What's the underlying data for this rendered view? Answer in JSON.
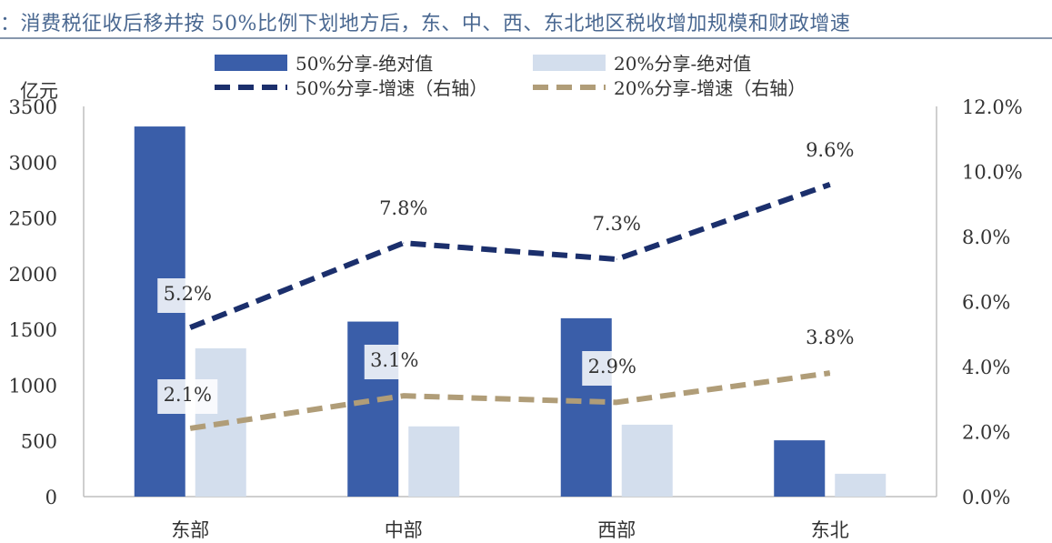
{
  "title": "：消费税征收后移并按 50%比例下划地方后，东、中、西、东北地区税收增加规模和财政增速",
  "chart_data": {
    "type": "bar",
    "title": "：消费税征收后移并按 50%比例下划地方后，东、中、西、东北地区税收增加规模和财政增速",
    "ylabel": "亿元",
    "ylim": [
      0,
      3500
    ],
    "yticks": [
      "0",
      "500",
      "1000",
      "1500",
      "2000",
      "2500",
      "3000",
      "3500"
    ],
    "y2lim": [
      0,
      12
    ],
    "y2ticks": [
      "0.0%",
      "2.0%",
      "4.0%",
      "6.0%",
      "8.0%",
      "10.0%",
      "12.0%"
    ],
    "categories": [
      "东部",
      "中部",
      "西部",
      "东北"
    ],
    "series": [
      {
        "name": "50%分享-绝对值",
        "kind": "bar",
        "color": "#3a5ea9",
        "values": [
          3320,
          1570,
          1600,
          505
        ]
      },
      {
        "name": "20%分享-绝对值",
        "kind": "bar",
        "color": "#d3deed",
        "values": [
          1330,
          630,
          645,
          205
        ]
      },
      {
        "name": "50%分享-增速（右轴）",
        "kind": "line",
        "axis": "right",
        "color": "#1b2f6c",
        "values": [
          5.2,
          7.8,
          7.3,
          9.6
        ],
        "labels": [
          "5.2%",
          "7.8%",
          "7.3%",
          "9.6%"
        ]
      },
      {
        "name": "20%分享-增速（右轴）",
        "kind": "line",
        "axis": "right",
        "color": "#b09d78",
        "values": [
          2.1,
          3.1,
          2.9,
          3.8
        ],
        "labels": [
          "2.1%",
          "3.1%",
          "2.9%",
          "3.8%"
        ]
      }
    ],
    "legend_position": "top"
  }
}
